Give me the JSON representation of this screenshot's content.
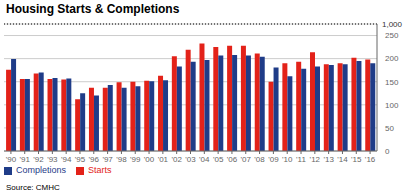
{
  "chart_data": {
    "type": "bar",
    "title": "Housing Starts & Completions",
    "source": "Source: CMHC",
    "annotations": [
      "1,000"
    ],
    "categories": [
      "'90",
      "'91",
      "'92",
      "'93",
      "'94",
      "'95",
      "'96",
      "'97",
      "'98",
      "'99",
      "'00",
      "'01",
      "'02",
      "'03",
      "'04",
      "'05",
      "'06",
      "'07",
      "'08",
      "'09",
      "'10",
      "'11",
      "'12",
      "'13",
      "'14",
      "'15",
      "'16"
    ],
    "series": [
      {
        "name": "Starts",
        "color": "#e32219",
        "values": [
          176,
          156,
          168,
          156,
          155,
          112,
          137,
          137,
          149,
          150,
          152,
          163,
          205,
          219,
          233,
          225,
          228,
          228,
          211,
          150,
          190,
          193,
          214,
          188,
          190,
          202,
          198
        ]
      },
      {
        "name": "Completions",
        "color": "#1f3c88",
        "values": [
          199,
          156,
          170,
          158,
          157,
          125,
          120,
          143,
          137,
          140,
          151,
          153,
          183,
          193,
          197,
          207,
          208,
          207,
          204,
          181,
          162,
          178,
          183,
          186,
          188,
          195,
          190
        ]
      }
    ],
    "ylim": [
      0,
      275
    ],
    "yticks": [
      0,
      50,
      100,
      150,
      200,
      250
    ],
    "grid": true,
    "legend": "lower left"
  }
}
